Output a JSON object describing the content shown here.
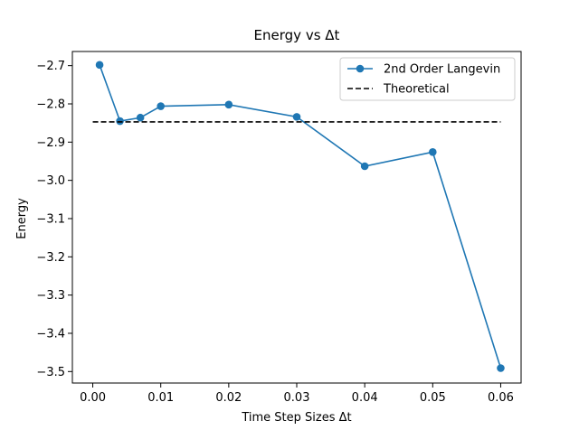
{
  "chart_data": {
    "type": "line",
    "title": "Energy vs Δt",
    "xlabel": "Time Step Sizes Δt",
    "ylabel": "Energy",
    "xlim": [
      -0.003,
      0.063
    ],
    "ylim": [
      -3.53,
      -2.663
    ],
    "x_ticks": [
      0.0,
      0.01,
      0.02,
      0.03,
      0.04,
      0.05,
      0.06
    ],
    "x_tick_labels": [
      "0.00",
      "0.01",
      "0.02",
      "0.03",
      "0.04",
      "0.05",
      "0.06"
    ],
    "y_ticks": [
      -2.7,
      -2.8,
      -2.9,
      -3.0,
      -3.1,
      -3.2,
      -3.3,
      -3.4,
      -3.5
    ],
    "y_tick_labels": [
      "−2.7",
      "−2.8",
      "−2.9",
      "−3.0",
      "−3.1",
      "−3.2",
      "−3.3",
      "−3.4",
      "−3.5"
    ],
    "grid": false,
    "legend_position": "top-right",
    "series": [
      {
        "name": "2nd Order Langevin",
        "style": "solid-with-markers",
        "color": "#1f77b4",
        "x": [
          0.001,
          0.004,
          0.007,
          0.01,
          0.02,
          0.03,
          0.04,
          0.05,
          0.06
        ],
        "y": [
          -2.698,
          -2.845,
          -2.836,
          -2.806,
          -2.802,
          -2.834,
          -2.963,
          -2.926,
          -3.491
        ]
      },
      {
        "name": "Theoretical",
        "style": "dashed",
        "color": "#000000",
        "x": [
          0.0,
          0.06
        ],
        "y": [
          -2.847,
          -2.847
        ]
      }
    ]
  }
}
